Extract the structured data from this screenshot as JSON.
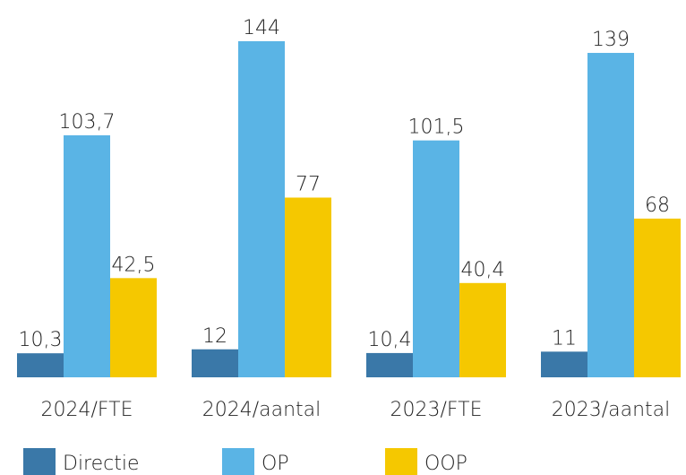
{
  "chart_data": {
    "type": "bar",
    "categories": [
      "2024/FTE",
      "2024/aantal",
      "2023/FTE",
      "2023/aantal"
    ],
    "series": [
      {
        "name": "Directie",
        "color": "#3a78a8",
        "values": [
          10.3,
          12,
          10.4,
          11
        ],
        "value_labels": [
          "10,3",
          "12",
          "10,4",
          "11"
        ]
      },
      {
        "name": "OP",
        "color": "#5ab4e5",
        "values": [
          103.7,
          144,
          101.5,
          139
        ],
        "value_labels": [
          "103,7",
          "144",
          "101,5",
          "139"
        ]
      },
      {
        "name": "OOP",
        "color": "#f5c800",
        "values": [
          42.5,
          77,
          40.4,
          68
        ],
        "value_labels": [
          "42,5",
          "77",
          "40,4",
          "68"
        ]
      }
    ]
  }
}
